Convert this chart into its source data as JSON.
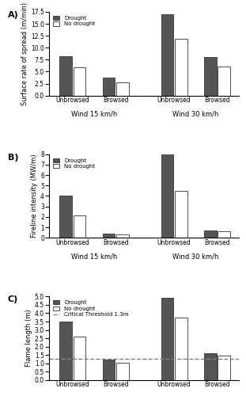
{
  "panel_A": {
    "title": "A)",
    "ylabel": "Surface rate of spread (m/min)",
    "ylim": [
      0,
      17.5
    ],
    "yticks": [
      0,
      2.5,
      5.0,
      7.5,
      10.0,
      12.5,
      15.0,
      17.5
    ],
    "drought": [
      8.3,
      3.8,
      17.0,
      8.1
    ],
    "no_drought": [
      5.9,
      2.8,
      11.9,
      6.1
    ]
  },
  "panel_B": {
    "title": "B)",
    "ylabel": "Fireline intensity (MW/m)",
    "ylim": [
      0,
      8
    ],
    "yticks": [
      0,
      1,
      2,
      3,
      4,
      5,
      6,
      7,
      8
    ],
    "drought": [
      4.05,
      0.42,
      8.15,
      0.72
    ],
    "no_drought": [
      2.18,
      0.3,
      4.52,
      0.6
    ]
  },
  "panel_C": {
    "title": "C)",
    "ylabel": "Flame length (m)",
    "ylim": [
      0,
      5
    ],
    "yticks": [
      0,
      0.5,
      1.0,
      1.5,
      2.0,
      2.5,
      3.0,
      3.5,
      4.0,
      4.5,
      5.0
    ],
    "drought": [
      3.52,
      1.22,
      4.92,
      1.62
    ],
    "no_drought": [
      2.62,
      1.02,
      3.72,
      1.48
    ],
    "threshold": 1.3
  },
  "x_labels": [
    "Unbrowsed",
    "Browsed",
    "Unbrowsed",
    "Browsed"
  ],
  "group_labels": [
    "Wind 15 km/h",
    "Wind 30 km/h"
  ],
  "legend_drought": "Drought",
  "legend_no_drought": "No drought",
  "legend_threshold": "Critical Threshold 1.3m",
  "bar_color_drought": "#555555",
  "bar_color_no_drought": "#ffffff",
  "bar_edgecolor": "#333333",
  "bar_width": 0.32,
  "bar_gap": 0.03,
  "group_centers": [
    0.5,
    1.6,
    3.1,
    4.2
  ]
}
